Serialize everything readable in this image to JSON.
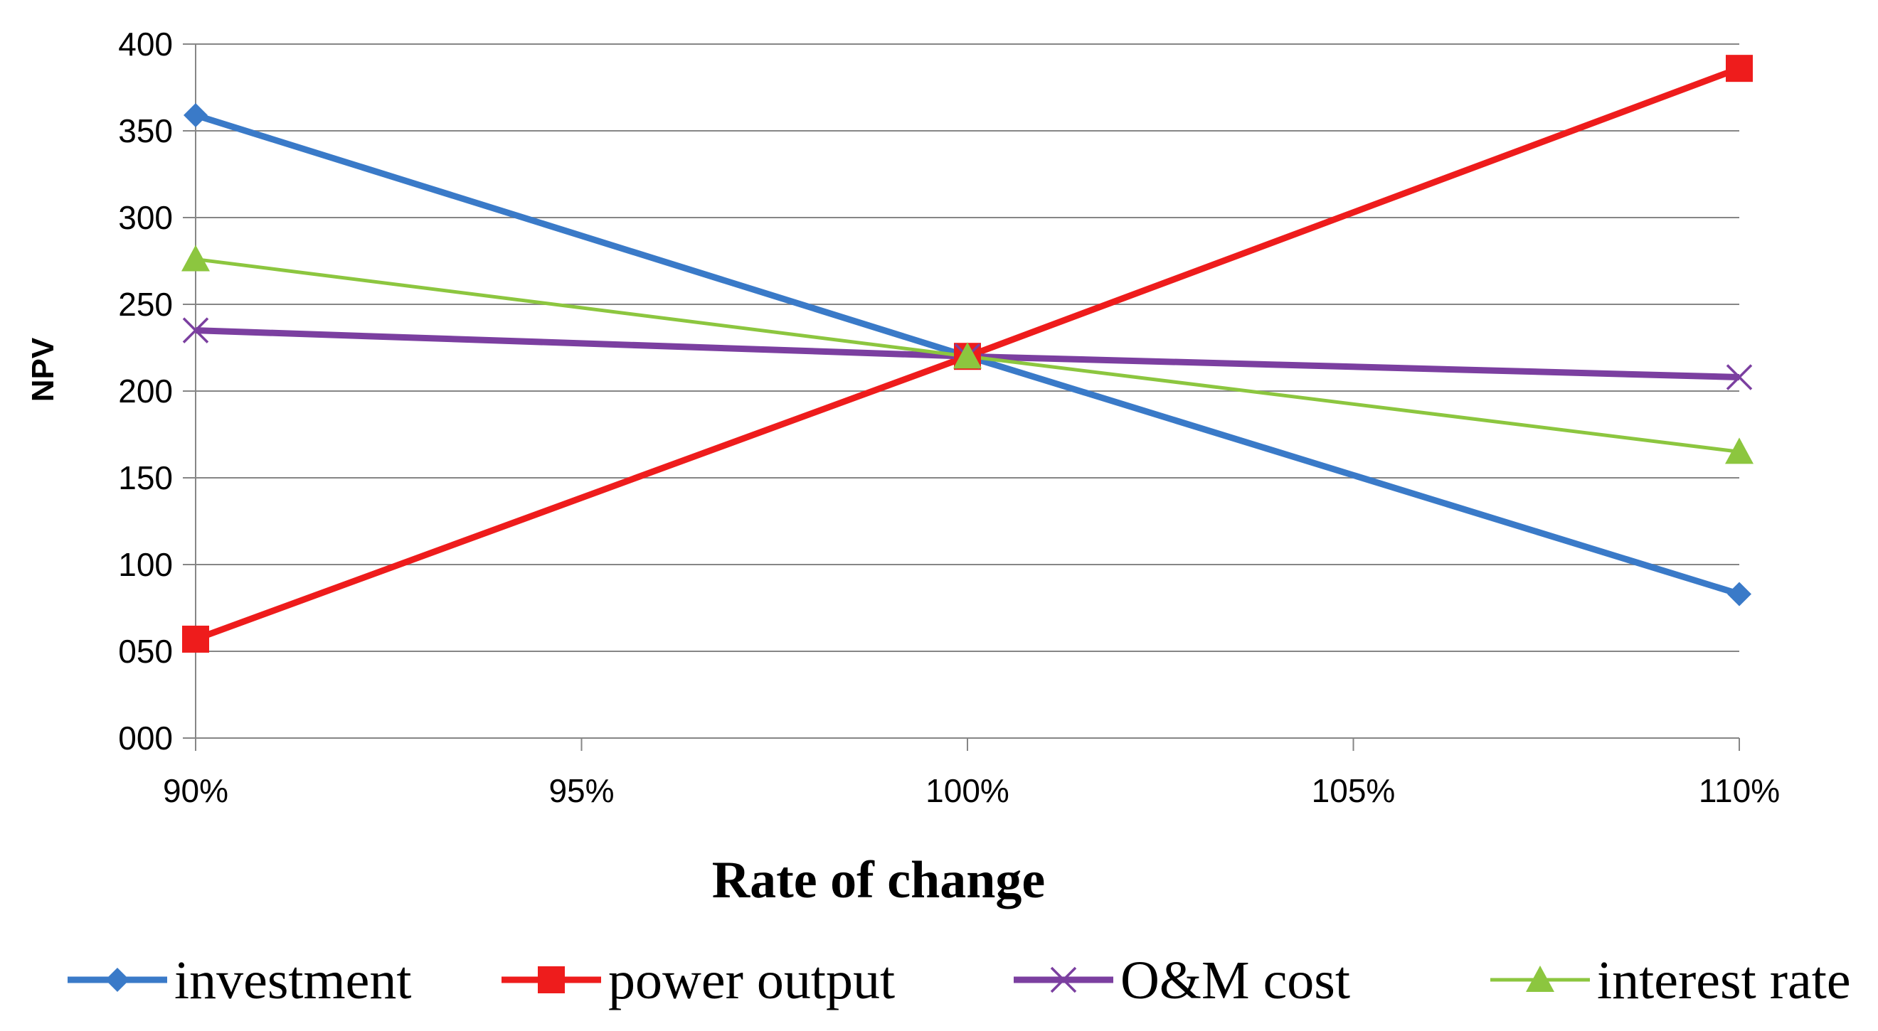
{
  "chart_data": {
    "type": "line",
    "title": "",
    "xlabel": "Rate of change",
    "ylabel": "NPV",
    "x": [
      90,
      95,
      100,
      105,
      110
    ],
    "xlim": [
      90,
      110
    ],
    "x_tick_labels": [
      "90%",
      "95%",
      "100%",
      "105%",
      "110%"
    ],
    "ylim": [
      0,
      400
    ],
    "y_ticks": [
      0,
      50,
      100,
      150,
      200,
      250,
      300,
      350,
      400
    ],
    "y_tick_labels": [
      "000",
      "050",
      "100",
      "150",
      "200",
      "250",
      "300",
      "350",
      "400"
    ],
    "grid": true,
    "legend_position": "bottom",
    "series": [
      {
        "name": "investment",
        "color": "#3a7ac8",
        "marker": "diamond",
        "x": [
          90,
          100,
          110
        ],
        "values": [
          359,
          220,
          83
        ]
      },
      {
        "name": "power output",
        "color": "#ee1c1c",
        "marker": "square",
        "x": [
          90,
          100,
          110
        ],
        "values": [
          57,
          220,
          386
        ]
      },
      {
        "name": "O&M cost",
        "color": "#7b3fa0",
        "marker": "x",
        "x": [
          90,
          100,
          110
        ],
        "values": [
          235,
          220,
          208
        ]
      },
      {
        "name": "interest rate",
        "color": "#8cc63f",
        "marker": "triangle",
        "x": [
          90,
          100,
          110
        ],
        "values": [
          276,
          220,
          165
        ]
      }
    ]
  }
}
